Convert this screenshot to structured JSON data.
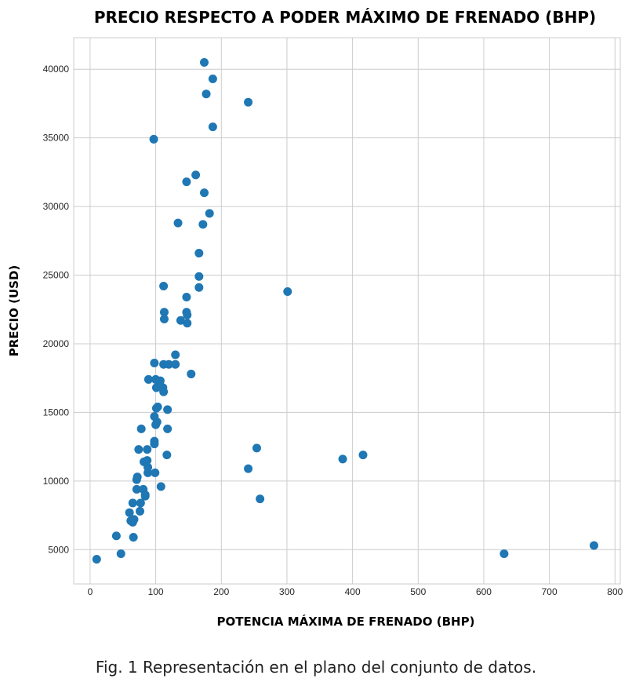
{
  "chart_data": {
    "type": "scatter",
    "title": "PRECIO RESPECTO A PODER MÁXIMO DE FRENADO (BHP)",
    "xlabel": "POTENCIA MÁXIMA DE FRENADO (BHP)",
    "ylabel": "PRECIO (USD)",
    "xlim": [
      -25,
      808
    ],
    "ylim": [
      2500,
      42300
    ],
    "xticks": [
      0,
      100,
      200,
      300,
      400,
      500,
      600,
      700,
      800
    ],
    "yticks": [
      5000,
      10000,
      15000,
      20000,
      25000,
      30000,
      35000,
      40000
    ],
    "grid": true,
    "point_color": "#1f77b4",
    "points": [
      [
        10,
        4300
      ],
      [
        40,
        6000
      ],
      [
        47,
        4700
      ],
      [
        60,
        7700
      ],
      [
        62,
        7100
      ],
      [
        65,
        7000
      ],
      [
        67,
        7200
      ],
      [
        65,
        8400
      ],
      [
        66,
        5900
      ],
      [
        71,
        9400
      ],
      [
        71,
        10100
      ],
      [
        72,
        10300
      ],
      [
        74,
        12300
      ],
      [
        76,
        7800
      ],
      [
        77,
        8400
      ],
      [
        78,
        13800
      ],
      [
        81,
        9400
      ],
      [
        82,
        11400
      ],
      [
        84,
        8900
      ],
      [
        84,
        9000
      ],
      [
        87,
        12300
      ],
      [
        87,
        11500
      ],
      [
        88,
        10600
      ],
      [
        88,
        11000
      ],
      [
        89,
        17400
      ],
      [
        97,
        34900
      ],
      [
        98,
        18600
      ],
      [
        98,
        14700
      ],
      [
        98,
        12700
      ],
      [
        98,
        12900
      ],
      [
        99,
        10600
      ],
      [
        100,
        14100
      ],
      [
        100,
        17400
      ],
      [
        101,
        16800
      ],
      [
        101,
        15300
      ],
      [
        102,
        14300
      ],
      [
        103,
        15400
      ],
      [
        107,
        17300
      ],
      [
        108,
        9600
      ],
      [
        111,
        16800
      ],
      [
        112,
        16500
      ],
      [
        112,
        18500
      ],
      [
        112,
        24200
      ],
      [
        113,
        22300
      ],
      [
        113,
        21800
      ],
      [
        117,
        11900
      ],
      [
        118,
        15200
      ],
      [
        118,
        13800
      ],
      [
        120,
        18500
      ],
      [
        130,
        18500
      ],
      [
        130,
        19200
      ],
      [
        134,
        28800
      ],
      [
        138,
        21700
      ],
      [
        147,
        31800
      ],
      [
        147,
        23400
      ],
      [
        147,
        22300
      ],
      [
        148,
        22100
      ],
      [
        148,
        21500
      ],
      [
        154,
        17800
      ],
      [
        161,
        32300
      ],
      [
        166,
        26600
      ],
      [
        166,
        24900
      ],
      [
        166,
        24100
      ],
      [
        172,
        28700
      ],
      [
        174,
        31000
      ],
      [
        174,
        40500
      ],
      [
        177,
        38200
      ],
      [
        182,
        29500
      ],
      [
        187,
        39300
      ],
      [
        187,
        35800
      ],
      [
        241,
        37600
      ],
      [
        241,
        10900
      ],
      [
        254,
        12400
      ],
      [
        259,
        8700
      ],
      [
        301,
        23800
      ],
      [
        385,
        11600
      ],
      [
        416,
        11900
      ],
      [
        631,
        4700
      ],
      [
        768,
        5300
      ]
    ]
  },
  "caption": "Fig. 1 Representación en el plano del conjunto de datos."
}
